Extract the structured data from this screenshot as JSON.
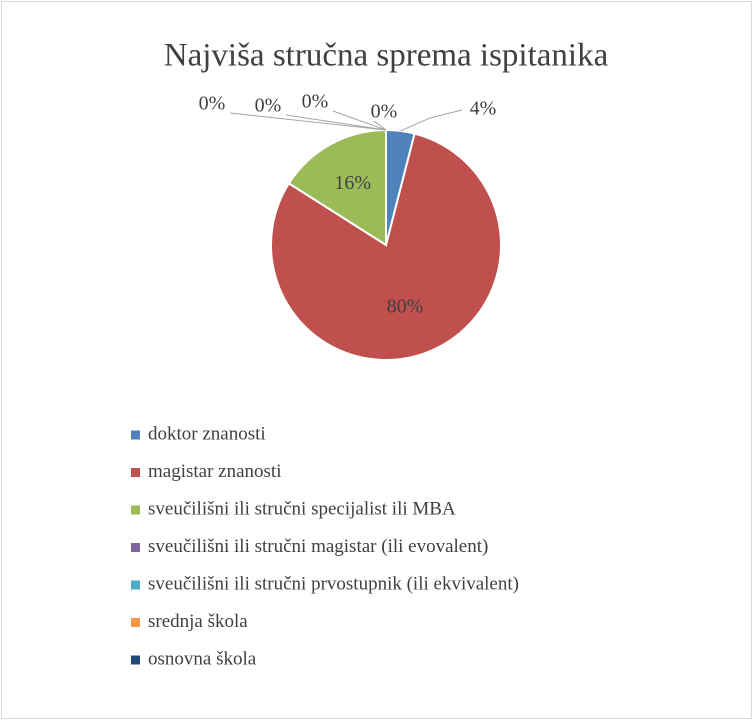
{
  "chart_data": {
    "type": "pie",
    "title": "Najviša stručna sprema ispitanika",
    "categories": [
      "doktor znanosti",
      "magistar znanosti",
      "sveučilišni ili stručni specijalist ili MBA",
      "sveučilišni ili stručni magistar (ili evovalent)",
      "sveučilišni ili stručni prvostupnik (ili ekvivalent)",
      "srednja škola",
      "osnovna škola"
    ],
    "values": [
      4,
      80,
      16,
      0,
      0,
      0,
      0
    ],
    "value_labels": [
      "4%",
      "80%",
      "16%",
      "0%",
      "0%",
      "0%",
      "0%"
    ],
    "colors": [
      "#4f81bd",
      "#c0504d",
      "#9bbb59",
      "#8064a2",
      "#4bacc6",
      "#f79646",
      "#1f497d"
    ],
    "legend": "bottom"
  }
}
